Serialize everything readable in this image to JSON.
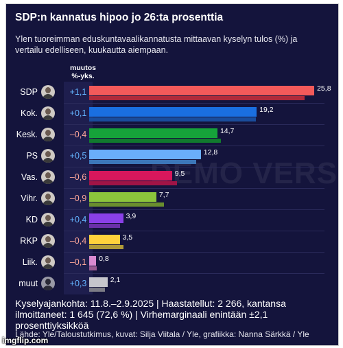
{
  "header": {
    "title": "SDP:n kannatus hipoo jo 26:ta prosenttia",
    "subtitle": "Ylen tuoreimman eduskuntavaalikannatusta mittaavan kyselyn tulos (%) ja vertailu edelliseen, kuukautta aiempaan."
  },
  "column_header": {
    "line1": "muutos",
    "line2": "%-yks."
  },
  "watermark": "DEMO VERSION",
  "chart_data": {
    "type": "bar",
    "orientation": "horizontal",
    "title": "SDP:n kannatus hipoo jo 26:ta prosenttia",
    "categories": [
      "SDP",
      "Kok.",
      "Kesk.",
      "PS",
      "Vas.",
      "Vihr.",
      "KD",
      "RKP",
      "Liik.",
      "muut"
    ],
    "values": [
      25.8,
      19.2,
      14.7,
      12.8,
      9.5,
      7.7,
      3.9,
      3.5,
      0.8,
      2.1
    ],
    "value_labels": [
      "25,8",
      "19,2",
      "14,7",
      "12,8",
      "9,5",
      "7,7",
      "3,9",
      "3,5",
      "0,8",
      "2,1"
    ],
    "changes": [
      1.1,
      0.1,
      -0.4,
      0.5,
      -0.6,
      -0.9,
      0.4,
      -0.4,
      -0.1,
      0.3
    ],
    "change_labels": [
      "+1,1",
      "+0,1",
      "–0,4",
      "+0,5",
      "–0,6",
      "–0,9",
      "+0,4",
      "–0,4",
      "–0,1",
      "+0,3"
    ],
    "previous_values": [
      24.7,
      19.1,
      15.1,
      12.3,
      10.1,
      8.6,
      3.5,
      3.9,
      0.9,
      1.8
    ],
    "colors": [
      "#f35a5a",
      "#1a6fe0",
      "#16a33a",
      "#6aaefa",
      "#d8175c",
      "#8bc43c",
      "#8a40e8",
      "#ffd23c",
      "#d98ad0",
      "#c6c6cc"
    ],
    "previous_colors": [
      "#b02a3a",
      "#1a4d9c",
      "#117a2e",
      "#3c76b8",
      "#a01446",
      "#6a8e2e",
      "#6a30a8",
      "#b09a38",
      "#9a5a92",
      "#7c7c86"
    ],
    "change_colors": {
      "positive": "#64b4ff",
      "negative": "#ffa89a"
    },
    "xlim": [
      0,
      26.5
    ],
    "grid": false,
    "legend": "none"
  },
  "footer": {
    "text": "Kyselyajankohta: 11.8.–2.9.2025 | Haastatellut: 2 266, kantansa ilmoittaneet: 1 645 (72,6 %) | Virhemarginaali enintään ±2,1 prosenttiyksikköä",
    "source": "Lähde: Yle/Taloustutkimus, kuvat: Silja Viitala / Yle, grafiikka: Nanna Särkkä / Yle"
  },
  "overlay": {
    "imgflip": "imgflip.com"
  }
}
